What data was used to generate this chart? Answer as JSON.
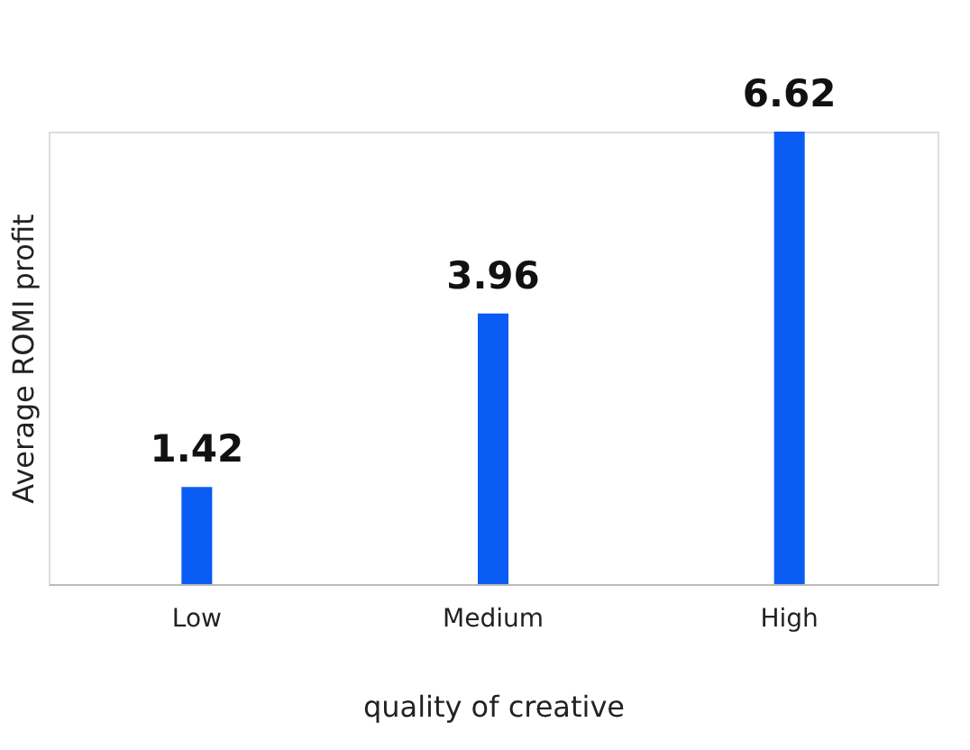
{
  "chart_data": {
    "type": "bar",
    "xlabel": "quality of creative",
    "ylabel": "Average ROMI profit",
    "categories": [
      "Low",
      "Medium",
      "High"
    ],
    "values": [
      1.42,
      3.96,
      6.62
    ],
    "color": "#0a5cf5",
    "data_labels": true,
    "tick_labels": "x",
    "grid": false
  }
}
